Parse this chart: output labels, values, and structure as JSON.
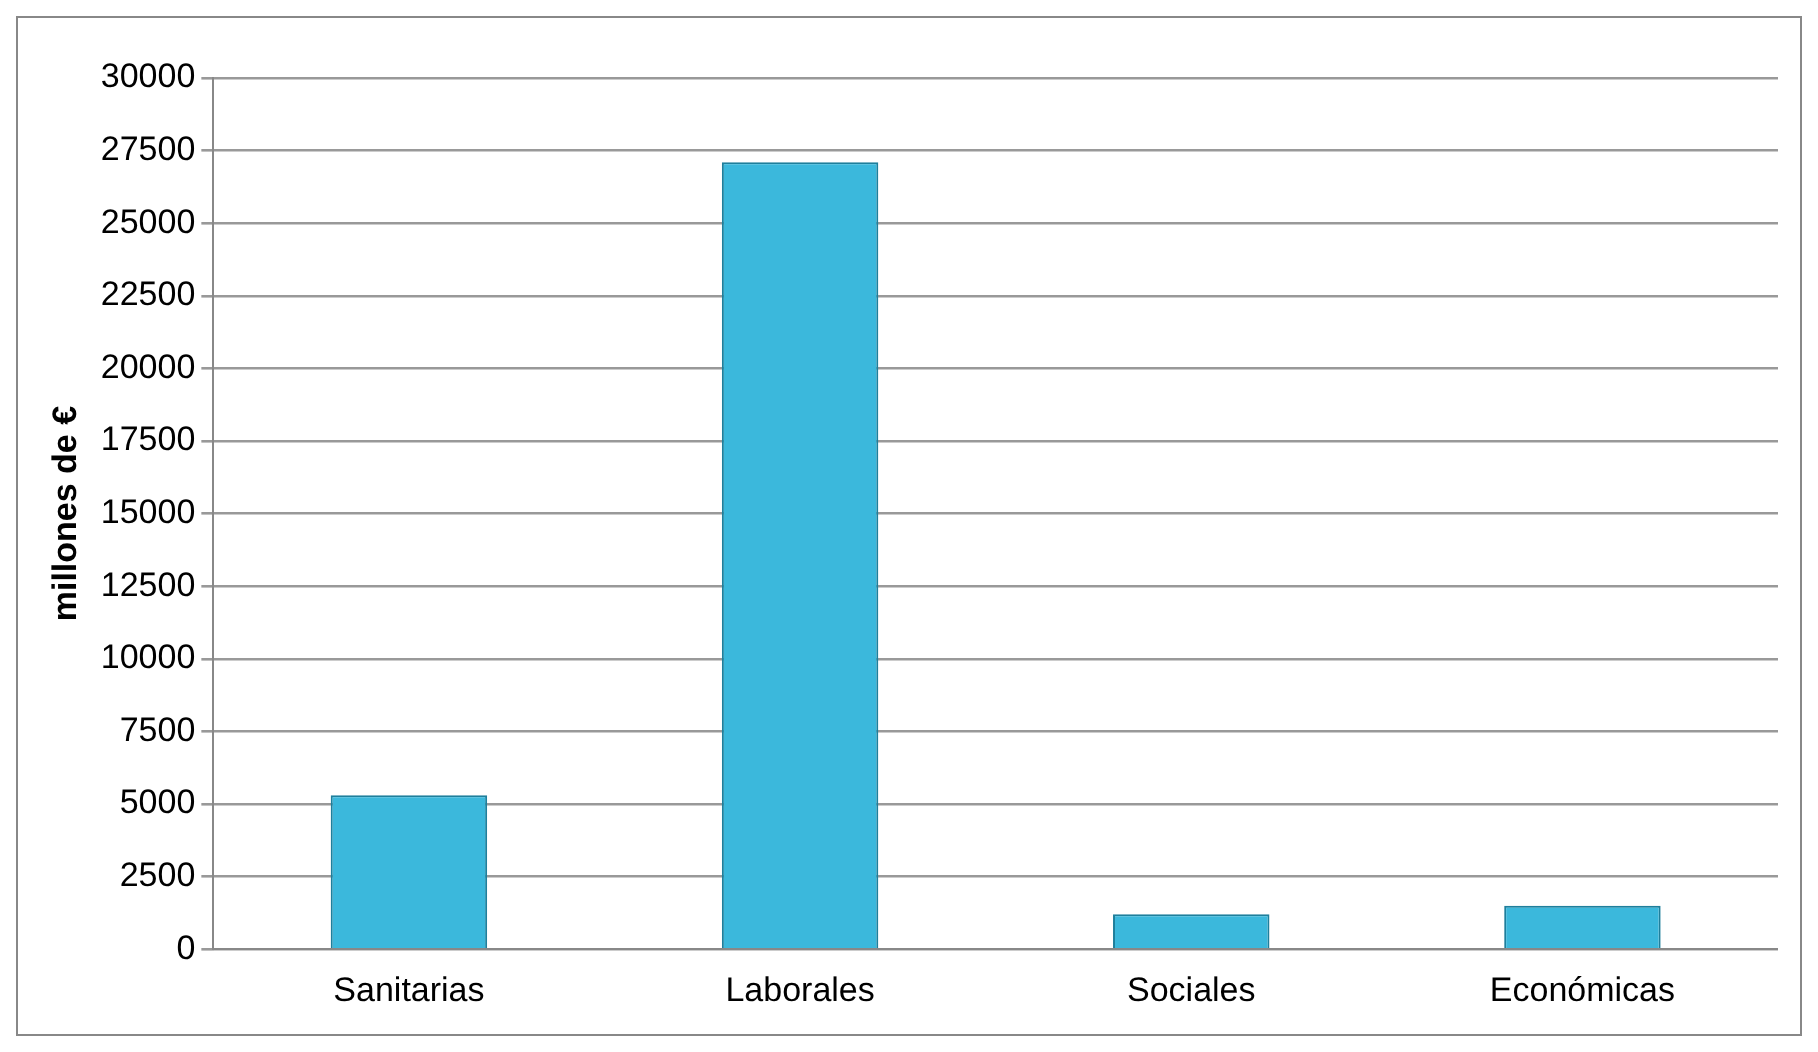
{
  "chart_data": {
    "type": "bar",
    "ylabel": "millones de €",
    "categories": [
      "Sanitarias",
      "Laborales",
      "Sociales",
      "Económicas"
    ],
    "values": [
      5300,
      27100,
      1200,
      1500
    ],
    "color": "#3bb8dc",
    "ylim": [
      0,
      30000
    ],
    "yticks": [
      0,
      2500,
      5000,
      7500,
      10000,
      12500,
      15000,
      17500,
      20000,
      22500,
      25000,
      27500,
      30000
    ],
    "grid": "y",
    "legend": false
  }
}
